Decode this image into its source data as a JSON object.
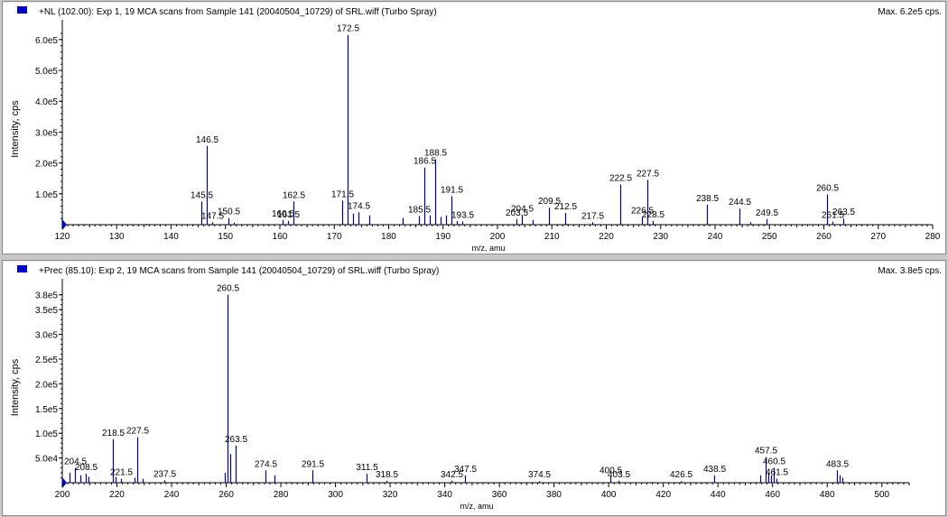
{
  "colors": {
    "peak": "#00008b",
    "axis": "#000000",
    "marker": "#0000cc",
    "background": "#ffffff",
    "frame": "#c8c8c8"
  },
  "chart_data": [
    {
      "type": "bar",
      "header": "+NL (102.00): Exp 1, 19 MCA scans from Sample 141 (20040504_10729) of SRL.wiff (Turbo Spray)",
      "max_label": "Max. 6.2e5 cps.",
      "xlabel": "m/z, amu",
      "ylabel": "Intensity, cps",
      "xlim": [
        120,
        280
      ],
      "ylim": [
        0,
        620000
      ],
      "xticks": [
        120,
        130,
        140,
        150,
        160,
        170,
        180,
        190,
        200,
        210,
        220,
        230,
        240,
        250,
        260,
        270,
        280
      ],
      "yticks": [
        {
          "v": 100000,
          "label": "1.0e5"
        },
        {
          "v": 200000,
          "label": "2.0e5"
        },
        {
          "v": 300000,
          "label": "3.0e5"
        },
        {
          "v": 400000,
          "label": "4.0e5"
        },
        {
          "v": 500000,
          "label": "5.0e5"
        },
        {
          "v": 600000,
          "label": "6.0e5"
        }
      ],
      "peaks": [
        {
          "x": 135.5,
          "y": 3000
        },
        {
          "x": 145.5,
          "y": 75000,
          "label": "145.5"
        },
        {
          "x": 146.5,
          "y": 255000,
          "label": "146.5"
        },
        {
          "x": 147.5,
          "y": 8000,
          "label": "147.5"
        },
        {
          "x": 150.5,
          "y": 22000,
          "label": "150.5"
        },
        {
          "x": 151.5,
          "y": 6000
        },
        {
          "x": 160.5,
          "y": 15000,
          "label": "160.5"
        },
        {
          "x": 161.5,
          "y": 12000,
          "label": "161.5"
        },
        {
          "x": 162.5,
          "y": 75000,
          "label": "162.5"
        },
        {
          "x": 171.5,
          "y": 78000,
          "label": "171.5"
        },
        {
          "x": 172.5,
          "y": 615000,
          "label": "172.5"
        },
        {
          "x": 173.5,
          "y": 35000
        },
        {
          "x": 174.5,
          "y": 40000,
          "label": "174.5"
        },
        {
          "x": 176.5,
          "y": 30000
        },
        {
          "x": 182.5,
          "y": 22000
        },
        {
          "x": 185.5,
          "y": 28000,
          "label": "185.5"
        },
        {
          "x": 186.5,
          "y": 185000,
          "label": "186.5"
        },
        {
          "x": 187.5,
          "y": 30000
        },
        {
          "x": 188.5,
          "y": 212000,
          "label": "188.5"
        },
        {
          "x": 189.5,
          "y": 25000
        },
        {
          "x": 190.5,
          "y": 30000
        },
        {
          "x": 191.5,
          "y": 92000,
          "label": "191.5"
        },
        {
          "x": 192.5,
          "y": 12000
        },
        {
          "x": 193.5,
          "y": 10000,
          "label": "193.5"
        },
        {
          "x": 203.5,
          "y": 18000,
          "label": "203.5"
        },
        {
          "x": 204.5,
          "y": 30000,
          "label": "204.5"
        },
        {
          "x": 206.5,
          "y": 15000
        },
        {
          "x": 209.5,
          "y": 55000,
          "label": "209.5"
        },
        {
          "x": 212.5,
          "y": 38000,
          "label": "212.5"
        },
        {
          "x": 217.5,
          "y": 8000,
          "label": "217.5"
        },
        {
          "x": 222.5,
          "y": 130000,
          "label": "222.5"
        },
        {
          "x": 226.5,
          "y": 25000,
          "label": "226.5"
        },
        {
          "x": 227.5,
          "y": 145000,
          "label": "227.5"
        },
        {
          "x": 228.5,
          "y": 12000,
          "label": "228.5"
        },
        {
          "x": 238.5,
          "y": 65000,
          "label": "238.5"
        },
        {
          "x": 244.5,
          "y": 52000,
          "label": "244.5"
        },
        {
          "x": 246.5,
          "y": 8000
        },
        {
          "x": 249.5,
          "y": 18000,
          "label": "249.5"
        },
        {
          "x": 260.5,
          "y": 98000,
          "label": "260.5"
        },
        {
          "x": 261.5,
          "y": 10000,
          "label": "261.5"
        },
        {
          "x": 263.5,
          "y": 20000,
          "label": "263.5"
        }
      ]
    },
    {
      "type": "bar",
      "header": "+Prec (85.10): Exp 2, 19 MCA scans from Sample 141 (20040504_10729) of SRL.wiff (Turbo Spray)",
      "max_label": "Max. 3.8e5 cps.",
      "xlabel": "m/z, amu",
      "ylabel": "Intensity, cps",
      "xlim": [
        200,
        510
      ],
      "ylim": [
        0,
        385000
      ],
      "xticks": [
        200,
        220,
        240,
        260,
        280,
        300,
        320,
        340,
        360,
        380,
        400,
        420,
        440,
        460,
        480,
        500
      ],
      "yticks": [
        {
          "v": 50000,
          "label": "5.0e4"
        },
        {
          "v": 100000,
          "label": "1.0e5"
        },
        {
          "v": 150000,
          "label": "1.5e5"
        },
        {
          "v": 200000,
          "label": "2.0e5"
        },
        {
          "v": 250000,
          "label": "2.5e5"
        },
        {
          "v": 300000,
          "label": "3.0e5"
        },
        {
          "v": 350000,
          "label": "3.5e5"
        },
        {
          "v": 380000,
          "label": "3.8e5"
        }
      ],
      "peaks": [
        {
          "x": 202.5,
          "y": 20000
        },
        {
          "x": 204.5,
          "y": 30000,
          "label": "204.5"
        },
        {
          "x": 206.5,
          "y": 15000
        },
        {
          "x": 208.5,
          "y": 18000,
          "label": "208.5"
        },
        {
          "x": 209.5,
          "y": 12000
        },
        {
          "x": 218.5,
          "y": 88000,
          "label": "218.5"
        },
        {
          "x": 219.5,
          "y": 12000
        },
        {
          "x": 221.5,
          "y": 8000,
          "label": "221.5"
        },
        {
          "x": 226.5,
          "y": 10000
        },
        {
          "x": 227.5,
          "y": 92000,
          "label": "227.5"
        },
        {
          "x": 229.5,
          "y": 8000
        },
        {
          "x": 237.5,
          "y": 5000,
          "label": "237.5"
        },
        {
          "x": 259.5,
          "y": 20000
        },
        {
          "x": 260.5,
          "y": 380000,
          "label": "260.5"
        },
        {
          "x": 261.5,
          "y": 58000
        },
        {
          "x": 263.5,
          "y": 75000,
          "label": "263.5"
        },
        {
          "x": 274.5,
          "y": 25000,
          "label": "274.5"
        },
        {
          "x": 277.5,
          "y": 15000
        },
        {
          "x": 291.5,
          "y": 25000,
          "label": "291.5"
        },
        {
          "x": 311.5,
          "y": 18000,
          "label": "311.5"
        },
        {
          "x": 318.5,
          "y": 4000,
          "label": "318.5"
        },
        {
          "x": 342.5,
          "y": 4000,
          "label": "342.5"
        },
        {
          "x": 347.5,
          "y": 15000,
          "label": "347.5"
        },
        {
          "x": 374.5,
          "y": 3000,
          "label": "374.5"
        },
        {
          "x": 400.5,
          "y": 12000,
          "label": "400.5"
        },
        {
          "x": 403.5,
          "y": 4000,
          "label": "403.5"
        },
        {
          "x": 426.5,
          "y": 3000,
          "label": "426.5"
        },
        {
          "x": 438.5,
          "y": 15000,
          "label": "438.5"
        },
        {
          "x": 455.5,
          "y": 15000
        },
        {
          "x": 457.5,
          "y": 52000,
          "label": "457.5"
        },
        {
          "x": 458.5,
          "y": 20000
        },
        {
          "x": 459.5,
          "y": 15000
        },
        {
          "x": 460.5,
          "y": 30000,
          "label": "460.5"
        },
        {
          "x": 461.5,
          "y": 8000,
          "label": "461.5"
        },
        {
          "x": 483.5,
          "y": 25000,
          "label": "483.5"
        },
        {
          "x": 484.5,
          "y": 15000
        },
        {
          "x": 485.5,
          "y": 10000
        }
      ]
    }
  ]
}
